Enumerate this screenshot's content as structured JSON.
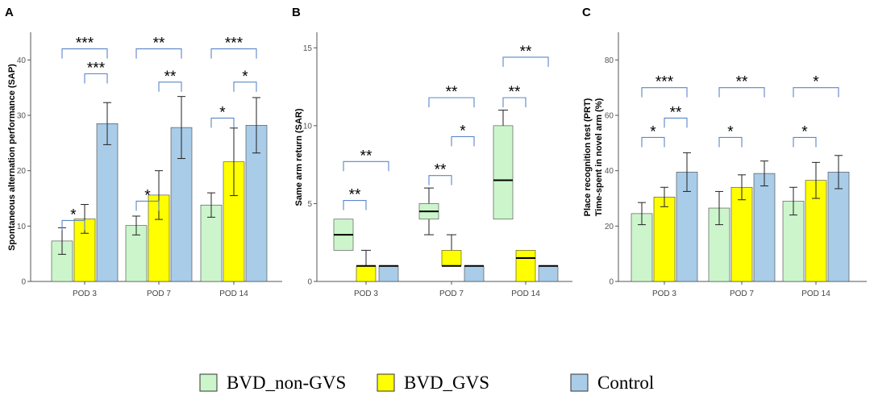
{
  "legend": [
    {
      "name": "BVD_non-GVS",
      "color": "#ccf5cc"
    },
    {
      "name": "BVD_GVS",
      "color": "#ffff00"
    },
    {
      "name": "Control",
      "color": "#a9cce8"
    }
  ],
  "colors": {
    "bracket": "#5b86c9",
    "axis": "#555555",
    "stroke": "#444444"
  },
  "chart_data": [
    {
      "panel": "A",
      "type": "bar",
      "ylabel": "Spontaneous alternation performance (SAP)",
      "ylim": [
        0,
        45
      ],
      "yticks": [
        0,
        10,
        20,
        30,
        40
      ],
      "categories": [
        "POD 3",
        "POD 7",
        "POD 14"
      ],
      "series": [
        {
          "name": "BVD_non-GVS",
          "values": [
            7.3,
            10.1,
            13.8
          ],
          "errors": [
            2.4,
            1.7,
            2.2
          ]
        },
        {
          "name": "BVD_GVS",
          "values": [
            11.3,
            15.6,
            21.6
          ],
          "errors": [
            2.6,
            4.4,
            6.1
          ]
        },
        {
          "name": "Control",
          "values": [
            28.5,
            27.8,
            28.2
          ],
          "errors": [
            3.8,
            5.6,
            5.0
          ]
        }
      ],
      "significance": [
        {
          "group": 0,
          "from": 0,
          "to": 1,
          "label": "*",
          "level": 11
        },
        {
          "group": 0,
          "from": 1,
          "to": 2,
          "label": "***",
          "level": 37.5
        },
        {
          "group": 0,
          "from": 0,
          "to": 2,
          "label": "***",
          "level": 42
        },
        {
          "group": 1,
          "from": 0,
          "to": 1,
          "label": "*",
          "level": 14.5
        },
        {
          "group": 1,
          "from": 1,
          "to": 2,
          "label": "**",
          "level": 36
        },
        {
          "group": 1,
          "from": 0,
          "to": 2,
          "label": "**",
          "level": 42
        },
        {
          "group": 2,
          "from": 0,
          "to": 1,
          "label": "*",
          "level": 29.5
        },
        {
          "group": 2,
          "from": 1,
          "to": 2,
          "label": "*",
          "level": 36
        },
        {
          "group": 2,
          "from": 0,
          "to": 2,
          "label": "***",
          "level": 42
        }
      ]
    },
    {
      "panel": "B",
      "type": "box",
      "ylabel": "Same arm return (SAR)",
      "ylim": [
        0,
        16
      ],
      "yticks": [
        0,
        5,
        10,
        15
      ],
      "categories": [
        "POD 3",
        "POD 7",
        "POD 14"
      ],
      "series": [
        {
          "name": "BVD_non-GVS",
          "boxes": [
            {
              "min": 2,
              "q1": 2,
              "median": 3,
              "q3": 4,
              "max": 4
            },
            {
              "min": 3,
              "q1": 4,
              "median": 4.5,
              "q3": 5,
              "max": 6
            },
            {
              "min": 4,
              "q1": 4,
              "median": 6.5,
              "q3": 10,
              "max": 11
            }
          ]
        },
        {
          "name": "BVD_GVS",
          "boxes": [
            {
              "min": 0,
              "q1": 0,
              "median": 1,
              "q3": 1,
              "max": 2
            },
            {
              "min": 1,
              "q1": 1,
              "median": 1,
              "q3": 2,
              "max": 3
            },
            {
              "min": 0,
              "q1": 0,
              "median": 1.5,
              "q3": 2,
              "max": 2
            }
          ]
        },
        {
          "name": "Control",
          "boxes": [
            {
              "min": 0,
              "q1": 0,
              "median": 1,
              "q3": 1,
              "max": 1
            },
            {
              "min": 0,
              "q1": 0,
              "median": 1,
              "q3": 1,
              "max": 1
            },
            {
              "min": 0,
              "q1": 0,
              "median": 1,
              "q3": 1,
              "max": 1
            }
          ]
        }
      ],
      "significance": [
        {
          "group": 0,
          "from": 0,
          "to": 1,
          "label": "**",
          "level": 5.2
        },
        {
          "group": 0,
          "from": 0,
          "to": 2,
          "label": "**",
          "level": 7.7
        },
        {
          "group": 1,
          "from": 0,
          "to": 1,
          "label": "**",
          "level": 6.8
        },
        {
          "group": 1,
          "from": 1,
          "to": 2,
          "label": "*",
          "level": 9.3
        },
        {
          "group": 1,
          "from": 0,
          "to": 2,
          "label": "**",
          "level": 11.8
        },
        {
          "group": 2,
          "from": 0,
          "to": 1,
          "label": "**",
          "level": 11.8
        },
        {
          "group": 2,
          "from": 0,
          "to": 2,
          "label": "**",
          "level": 14.4
        }
      ]
    },
    {
      "panel": "C",
      "type": "bar",
      "ylabel": "Place recognition test (PRT)|Time-spent in novel arm (%)",
      "ylim": [
        0,
        90
      ],
      "yticks": [
        0,
        20,
        40,
        60,
        80
      ],
      "categories": [
        "POD 3",
        "POD 7",
        "POD 14"
      ],
      "series": [
        {
          "name": "BVD_non-GVS",
          "values": [
            24.5,
            26.5,
            29
          ],
          "errors": [
            4,
            6,
            5
          ]
        },
        {
          "name": "BVD_GVS",
          "values": [
            30.5,
            34,
            36.5
          ],
          "errors": [
            3.5,
            4.5,
            6.5
          ]
        },
        {
          "name": "Control",
          "values": [
            39.5,
            39,
            39.5
          ],
          "errors": [
            7,
            4.5,
            6
          ]
        }
      ],
      "significance": [
        {
          "group": 0,
          "from": 0,
          "to": 1,
          "label": "*",
          "level": 52
        },
        {
          "group": 0,
          "from": 1,
          "to": 2,
          "label": "**",
          "level": 59
        },
        {
          "group": 0,
          "from": 0,
          "to": 2,
          "label": "***",
          "level": 70
        },
        {
          "group": 1,
          "from": 0,
          "to": 1,
          "label": "*",
          "level": 52
        },
        {
          "group": 1,
          "from": 0,
          "to": 2,
          "label": "**",
          "level": 70
        },
        {
          "group": 2,
          "from": 0,
          "to": 1,
          "label": "*",
          "level": 52
        },
        {
          "group": 2,
          "from": 0,
          "to": 2,
          "label": "*",
          "level": 70
        }
      ]
    }
  ]
}
